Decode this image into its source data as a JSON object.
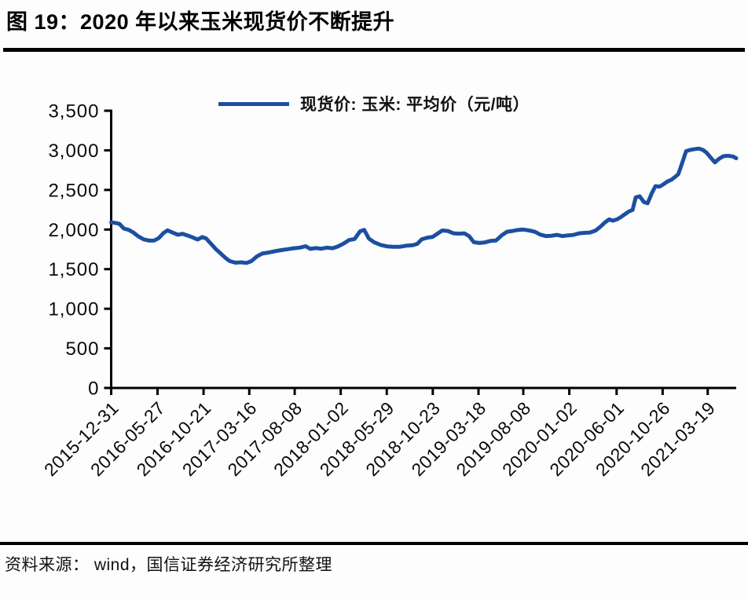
{
  "figure": {
    "title": "图 19：2020 年以来玉米现货价不断提升",
    "source": "资料来源： wind，国信证券经济研究所整理"
  },
  "colors": {
    "line": "#1d4fa0",
    "axis": "#000000",
    "text": "#0a0a0a"
  },
  "chart_data": {
    "type": "line",
    "title": "图 19：2020 年以来玉米现货价不断提升",
    "legend": "现货价: 玉米: 平均价（元/吨）",
    "legend_position": "top-center",
    "xlabel": "",
    "ylabel": "",
    "grid": false,
    "ylim": [
      0,
      3500
    ],
    "yticks": [
      {
        "value": 0,
        "label": "0"
      },
      {
        "value": 500,
        "label": "500"
      },
      {
        "value": 1000,
        "label": "1,000"
      },
      {
        "value": 1500,
        "label": "1,500"
      },
      {
        "value": 2000,
        "label": "2,000"
      },
      {
        "value": 2500,
        "label": "2,500"
      },
      {
        "value": 3000,
        "label": "3,000"
      },
      {
        "value": 3500,
        "label": "3,500"
      }
    ],
    "x_domain": [
      "2015-12-31",
      "2021-06-18"
    ],
    "xticks": [
      "2015-12-31",
      "2016-05-27",
      "2016-10-21",
      "2017-03-16",
      "2017-08-08",
      "2018-01-02",
      "2018-05-29",
      "2018-10-23",
      "2019-03-18",
      "2019-08-08",
      "2020-01-02",
      "2020-06-01",
      "2020-10-26",
      "2021-03-19"
    ],
    "line_color": "#1d4fa0",
    "series": [
      {
        "name": "现货价: 玉米: 平均价（元/吨）",
        "unit": "元/吨",
        "points": [
          [
            "2015-12-31",
            2090
          ],
          [
            "2016-01-11",
            2085
          ],
          [
            "2016-01-26",
            2072
          ],
          [
            "2016-02-10",
            2012
          ],
          [
            "2016-02-25",
            1996
          ],
          [
            "2016-03-11",
            1962
          ],
          [
            "2016-03-26",
            1916
          ],
          [
            "2016-04-13",
            1876
          ],
          [
            "2016-05-01",
            1860
          ],
          [
            "2016-05-16",
            1861
          ],
          [
            "2016-05-31",
            1892
          ],
          [
            "2016-06-15",
            1956
          ],
          [
            "2016-06-28",
            1990
          ],
          [
            "2016-07-13",
            1964
          ],
          [
            "2016-07-31",
            1934
          ],
          [
            "2016-08-15",
            1946
          ],
          [
            "2016-08-30",
            1926
          ],
          [
            "2016-09-17",
            1900
          ],
          [
            "2016-10-02",
            1874
          ],
          [
            "2016-10-17",
            1906
          ],
          [
            "2016-10-29",
            1888
          ],
          [
            "2016-11-14",
            1820
          ],
          [
            "2016-11-29",
            1754
          ],
          [
            "2016-12-14",
            1700
          ],
          [
            "2016-12-29",
            1645
          ],
          [
            "2017-01-13",
            1601
          ],
          [
            "2017-01-31",
            1581
          ],
          [
            "2017-02-17",
            1586
          ],
          [
            "2017-03-07",
            1578
          ],
          [
            "2017-03-22",
            1600
          ],
          [
            "2017-04-09",
            1660
          ],
          [
            "2017-04-26",
            1696
          ],
          [
            "2017-05-17",
            1710
          ],
          [
            "2017-06-06",
            1726
          ],
          [
            "2017-06-26",
            1740
          ],
          [
            "2017-07-16",
            1752
          ],
          [
            "2017-08-05",
            1764
          ],
          [
            "2017-08-25",
            1772
          ],
          [
            "2017-09-12",
            1790
          ],
          [
            "2017-09-27",
            1756
          ],
          [
            "2017-10-15",
            1766
          ],
          [
            "2017-11-01",
            1758
          ],
          [
            "2017-11-19",
            1772
          ],
          [
            "2017-12-07",
            1764
          ],
          [
            "2017-12-24",
            1786
          ],
          [
            "2018-01-11",
            1822
          ],
          [
            "2018-01-29",
            1868
          ],
          [
            "2018-02-15",
            1880
          ],
          [
            "2018-03-05",
            1978
          ],
          [
            "2018-03-18",
            1996
          ],
          [
            "2018-04-02",
            1886
          ],
          [
            "2018-04-19",
            1838
          ],
          [
            "2018-05-10",
            1806
          ],
          [
            "2018-05-30",
            1788
          ],
          [
            "2018-06-19",
            1782
          ],
          [
            "2018-07-09",
            1782
          ],
          [
            "2018-07-29",
            1796
          ],
          [
            "2018-08-19",
            1802
          ],
          [
            "2018-09-03",
            1818
          ],
          [
            "2018-09-18",
            1878
          ],
          [
            "2018-10-06",
            1898
          ],
          [
            "2018-10-23",
            1908
          ],
          [
            "2018-11-07",
            1948
          ],
          [
            "2018-11-22",
            1988
          ],
          [
            "2018-12-10",
            1982
          ],
          [
            "2018-12-28",
            1952
          ],
          [
            "2019-01-14",
            1948
          ],
          [
            "2019-02-01",
            1952
          ],
          [
            "2019-02-16",
            1918
          ],
          [
            "2019-03-03",
            1840
          ],
          [
            "2019-03-21",
            1830
          ],
          [
            "2019-04-08",
            1838
          ],
          [
            "2019-04-25",
            1856
          ],
          [
            "2019-05-13",
            1862
          ],
          [
            "2019-05-31",
            1926
          ],
          [
            "2019-06-17",
            1972
          ],
          [
            "2019-07-05",
            1982
          ],
          [
            "2019-07-23",
            1996
          ],
          [
            "2019-08-09",
            2000
          ],
          [
            "2019-08-27",
            1988
          ],
          [
            "2019-09-14",
            1972
          ],
          [
            "2019-10-01",
            1936
          ],
          [
            "2019-10-19",
            1918
          ],
          [
            "2019-11-06",
            1922
          ],
          [
            "2019-11-23",
            1932
          ],
          [
            "2019-12-11",
            1918
          ],
          [
            "2019-12-29",
            1926
          ],
          [
            "2020-01-15",
            1932
          ],
          [
            "2020-02-02",
            1952
          ],
          [
            "2020-02-19",
            1958
          ],
          [
            "2020-03-08",
            1962
          ],
          [
            "2020-03-26",
            1988
          ],
          [
            "2020-04-10",
            2035
          ],
          [
            "2020-04-25",
            2090
          ],
          [
            "2020-05-08",
            2128
          ],
          [
            "2020-05-20",
            2112
          ],
          [
            "2020-06-02",
            2128
          ],
          [
            "2020-06-15",
            2158
          ],
          [
            "2020-06-27",
            2192
          ],
          [
            "2020-07-10",
            2228
          ],
          [
            "2020-07-22",
            2248
          ],
          [
            "2020-08-01",
            2405
          ],
          [
            "2020-08-14",
            2420
          ],
          [
            "2020-08-27",
            2348
          ],
          [
            "2020-09-08",
            2332
          ],
          [
            "2020-09-21",
            2455
          ],
          [
            "2020-10-03",
            2548
          ],
          [
            "2020-10-16",
            2542
          ],
          [
            "2020-10-29",
            2572
          ],
          [
            "2020-11-10",
            2606
          ],
          [
            "2020-11-23",
            2628
          ],
          [
            "2020-12-05",
            2665
          ],
          [
            "2020-12-15",
            2700
          ],
          [
            "2020-12-23",
            2790
          ],
          [
            "2021-01-02",
            2905
          ],
          [
            "2021-01-09",
            2990
          ],
          [
            "2021-01-25",
            3008
          ],
          [
            "2021-02-07",
            3016
          ],
          [
            "2021-02-19",
            3022
          ],
          [
            "2021-03-04",
            3004
          ],
          [
            "2021-03-16",
            2968
          ],
          [
            "2021-03-29",
            2906
          ],
          [
            "2021-04-11",
            2848
          ],
          [
            "2021-04-23",
            2890
          ],
          [
            "2021-05-08",
            2926
          ],
          [
            "2021-05-23",
            2932
          ],
          [
            "2021-06-08",
            2922
          ],
          [
            "2021-06-18",
            2900
          ]
        ]
      }
    ]
  }
}
